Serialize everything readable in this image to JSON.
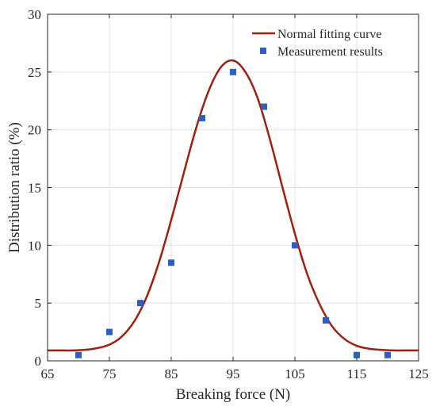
{
  "chart_data": {
    "type": "scatter",
    "xlabel": "Breaking force (N)",
    "ylabel": "Distribution ratio (%)",
    "xlim": [
      65,
      125
    ],
    "ylim": [
      0,
      30
    ],
    "xticks": [
      "65",
      "75",
      "85",
      "95",
      "105",
      "115",
      "125"
    ],
    "yticks": [
      "0",
      "5",
      "10",
      "15",
      "20",
      "25",
      "30"
    ],
    "grid": true,
    "legend_position": "top-right",
    "series": [
      {
        "name": "Normal fitting curve",
        "kind": "line",
        "color": "#a0200f",
        "x": [
          65,
          67,
          69,
          71,
          73,
          75,
          77,
          79,
          81,
          83,
          85,
          87,
          89,
          91,
          93,
          95,
          97,
          99,
          101,
          103,
          105,
          107,
          109,
          111,
          113,
          115,
          117,
          119,
          121,
          123,
          125
        ],
        "y": [
          0.9,
          0.9,
          0.9,
          0.95,
          1.1,
          1.4,
          2.1,
          3.4,
          5.5,
          8.5,
          12.2,
          16.2,
          20.1,
          23.3,
          25.4,
          26.0,
          25.0,
          22.7,
          19.1,
          15.0,
          11.0,
          7.5,
          4.9,
          3.0,
          1.9,
          1.3,
          1.05,
          0.95,
          0.9,
          0.9,
          0.9
        ]
      },
      {
        "name": "Measurement results",
        "kind": "scatter",
        "color": "#2c5fc1",
        "x": [
          70,
          75,
          80,
          85,
          90,
          95,
          100,
          105,
          110,
          115,
          120
        ],
        "y": [
          0.5,
          2.5,
          5.0,
          8.5,
          21.0,
          25.0,
          22.0,
          10.0,
          3.5,
          0.5,
          0.5
        ]
      }
    ]
  }
}
